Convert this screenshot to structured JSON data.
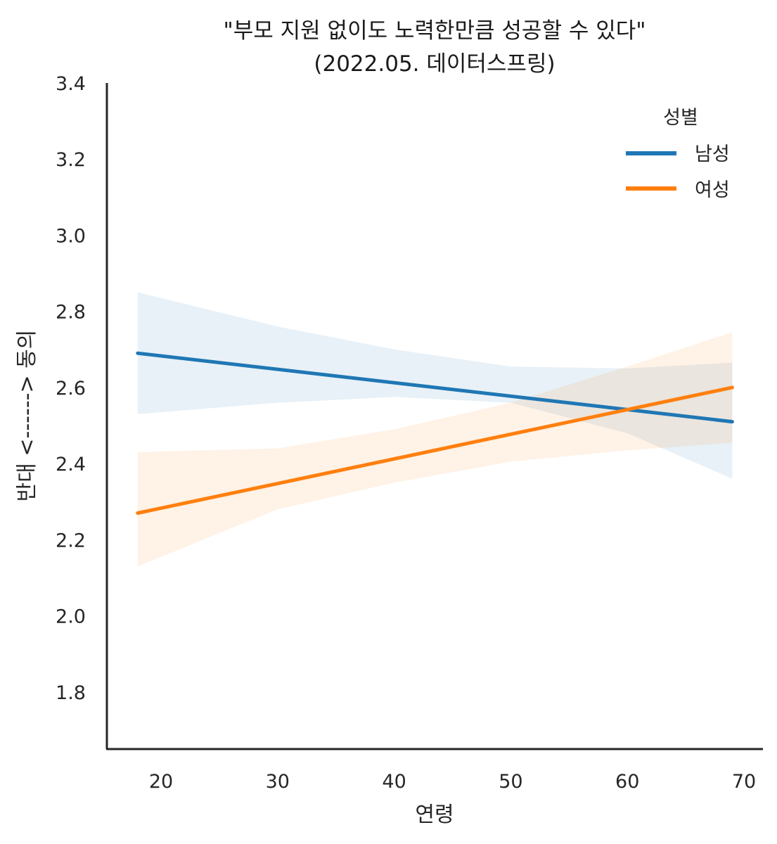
{
  "chart_data": {
    "type": "line",
    "title_line1": "\"부모 지원 없이도 노력한만큼 성공할 수 있다\"",
    "title_line2": "(2022.05. 데이터스프링)",
    "xlabel": "연령",
    "ylabel": "반대 <------> 동의",
    "xlim": [
      15,
      71.5
    ],
    "ylim": [
      1.65,
      3.4
    ],
    "x_ticks": [
      20,
      30,
      40,
      50,
      60,
      70
    ],
    "y_ticks": [
      1.8,
      2.0,
      2.2,
      2.4,
      2.6,
      2.8,
      3.0,
      3.2,
      3.4
    ],
    "x_tick_labels": [
      "20",
      "30",
      "40",
      "50",
      "60",
      "70"
    ],
    "y_tick_labels": [
      "1.8",
      "2.0",
      "2.2",
      "2.4",
      "2.6",
      "2.8",
      "3.0",
      "3.2",
      "3.4"
    ],
    "legend": {
      "title": "성별",
      "placement": "top-right"
    },
    "series": [
      {
        "name": "남성",
        "color": "#1f77b4",
        "x": [
          18,
          69
        ],
        "y": [
          2.69,
          2.51
        ],
        "ci_x": [
          18,
          30,
          40,
          50,
          60,
          69
        ],
        "ci_lower": [
          2.53,
          2.56,
          2.575,
          2.56,
          2.48,
          2.36
        ],
        "ci_upper": [
          2.85,
          2.76,
          2.7,
          2.655,
          2.65,
          2.665
        ]
      },
      {
        "name": "여성",
        "color": "#ff7f0e",
        "x": [
          18,
          69
        ],
        "y": [
          2.27,
          2.6
        ],
        "ci_x": [
          18,
          30,
          40,
          50,
          60,
          69
        ],
        "ci_lower": [
          2.13,
          2.28,
          2.35,
          2.405,
          2.435,
          2.455
        ],
        "ci_upper": [
          2.43,
          2.44,
          2.49,
          2.56,
          2.655,
          2.745
        ]
      }
    ]
  }
}
